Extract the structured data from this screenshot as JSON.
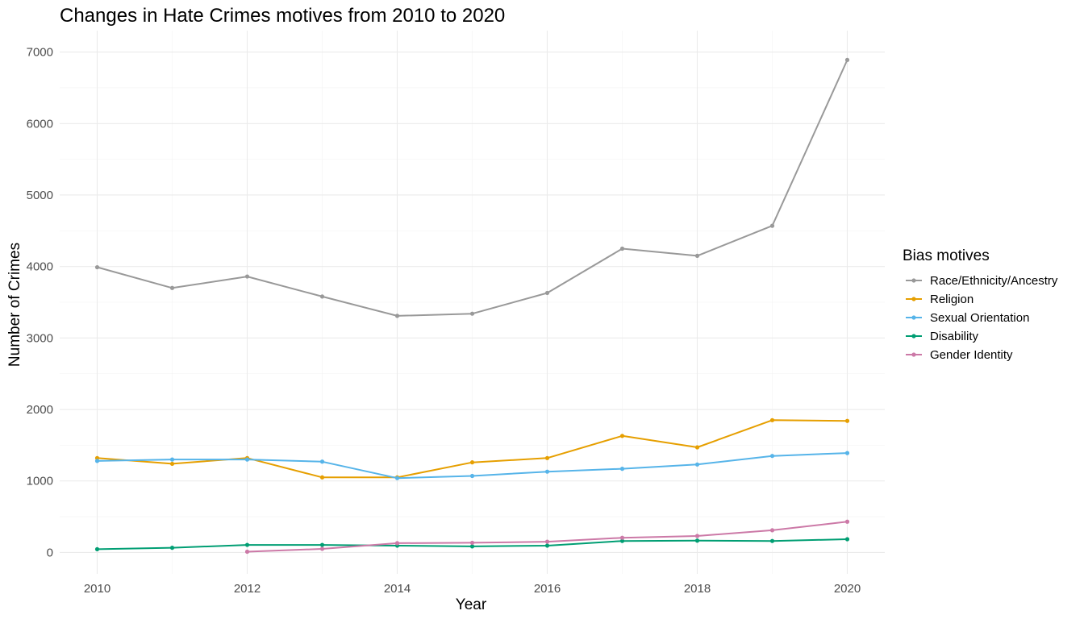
{
  "chart_data": {
    "type": "line",
    "title": "Changes in Hate Crimes motives from 2010 to 2020",
    "xlabel": "Year",
    "ylabel": "Number of Crimes",
    "x_ticks": [
      "2010",
      "2012",
      "2014",
      "2016",
      "2018",
      "2020"
    ],
    "y_ticks": [
      "0",
      "1000",
      "2000",
      "3000",
      "4000",
      "5000",
      "6000",
      "7000"
    ],
    "xlim": [
      2009.5,
      2020.5
    ],
    "ylim": [
      -300,
      7300
    ],
    "grid": true,
    "legend_title": "Bias motives",
    "legend_position": "right",
    "series": [
      {
        "name": "Race/Ethnicity/Ancestry",
        "color": "#999999",
        "x": [
          2010,
          2011,
          2012,
          2013,
          2014,
          2015,
          2016,
          2017,
          2018,
          2019,
          2020
        ],
        "values": [
          3990,
          3700,
          3860,
          3580,
          3310,
          3340,
          3630,
          4250,
          4150,
          4570,
          6890
        ]
      },
      {
        "name": "Religion",
        "color": "#E69F00",
        "x": [
          2010,
          2011,
          2012,
          2013,
          2014,
          2015,
          2016,
          2017,
          2018,
          2019,
          2020
        ],
        "values": [
          1320,
          1240,
          1320,
          1050,
          1050,
          1260,
          1320,
          1630,
          1470,
          1850,
          1840
        ]
      },
      {
        "name": "Sexual Orientation",
        "color": "#56B4E9",
        "x": [
          2010,
          2011,
          2012,
          2013,
          2014,
          2015,
          2016,
          2017,
          2018,
          2019,
          2020
        ],
        "values": [
          1280,
          1300,
          1300,
          1270,
          1040,
          1070,
          1130,
          1170,
          1230,
          1350,
          1390
        ]
      },
      {
        "name": "Disability",
        "color": "#009E73",
        "x": [
          2010,
          2011,
          2012,
          2013,
          2014,
          2015,
          2016,
          2017,
          2018,
          2019,
          2020
        ],
        "values": [
          45,
          65,
          105,
          105,
          95,
          85,
          95,
          160,
          165,
          160,
          185
        ]
      },
      {
        "name": "Gender Identity",
        "color": "#CC79A7",
        "x": [
          2012,
          2013,
          2014,
          2015,
          2016,
          2017,
          2018,
          2019,
          2020
        ],
        "values": [
          10,
          50,
          130,
          135,
          150,
          205,
          230,
          310,
          430
        ]
      }
    ]
  }
}
